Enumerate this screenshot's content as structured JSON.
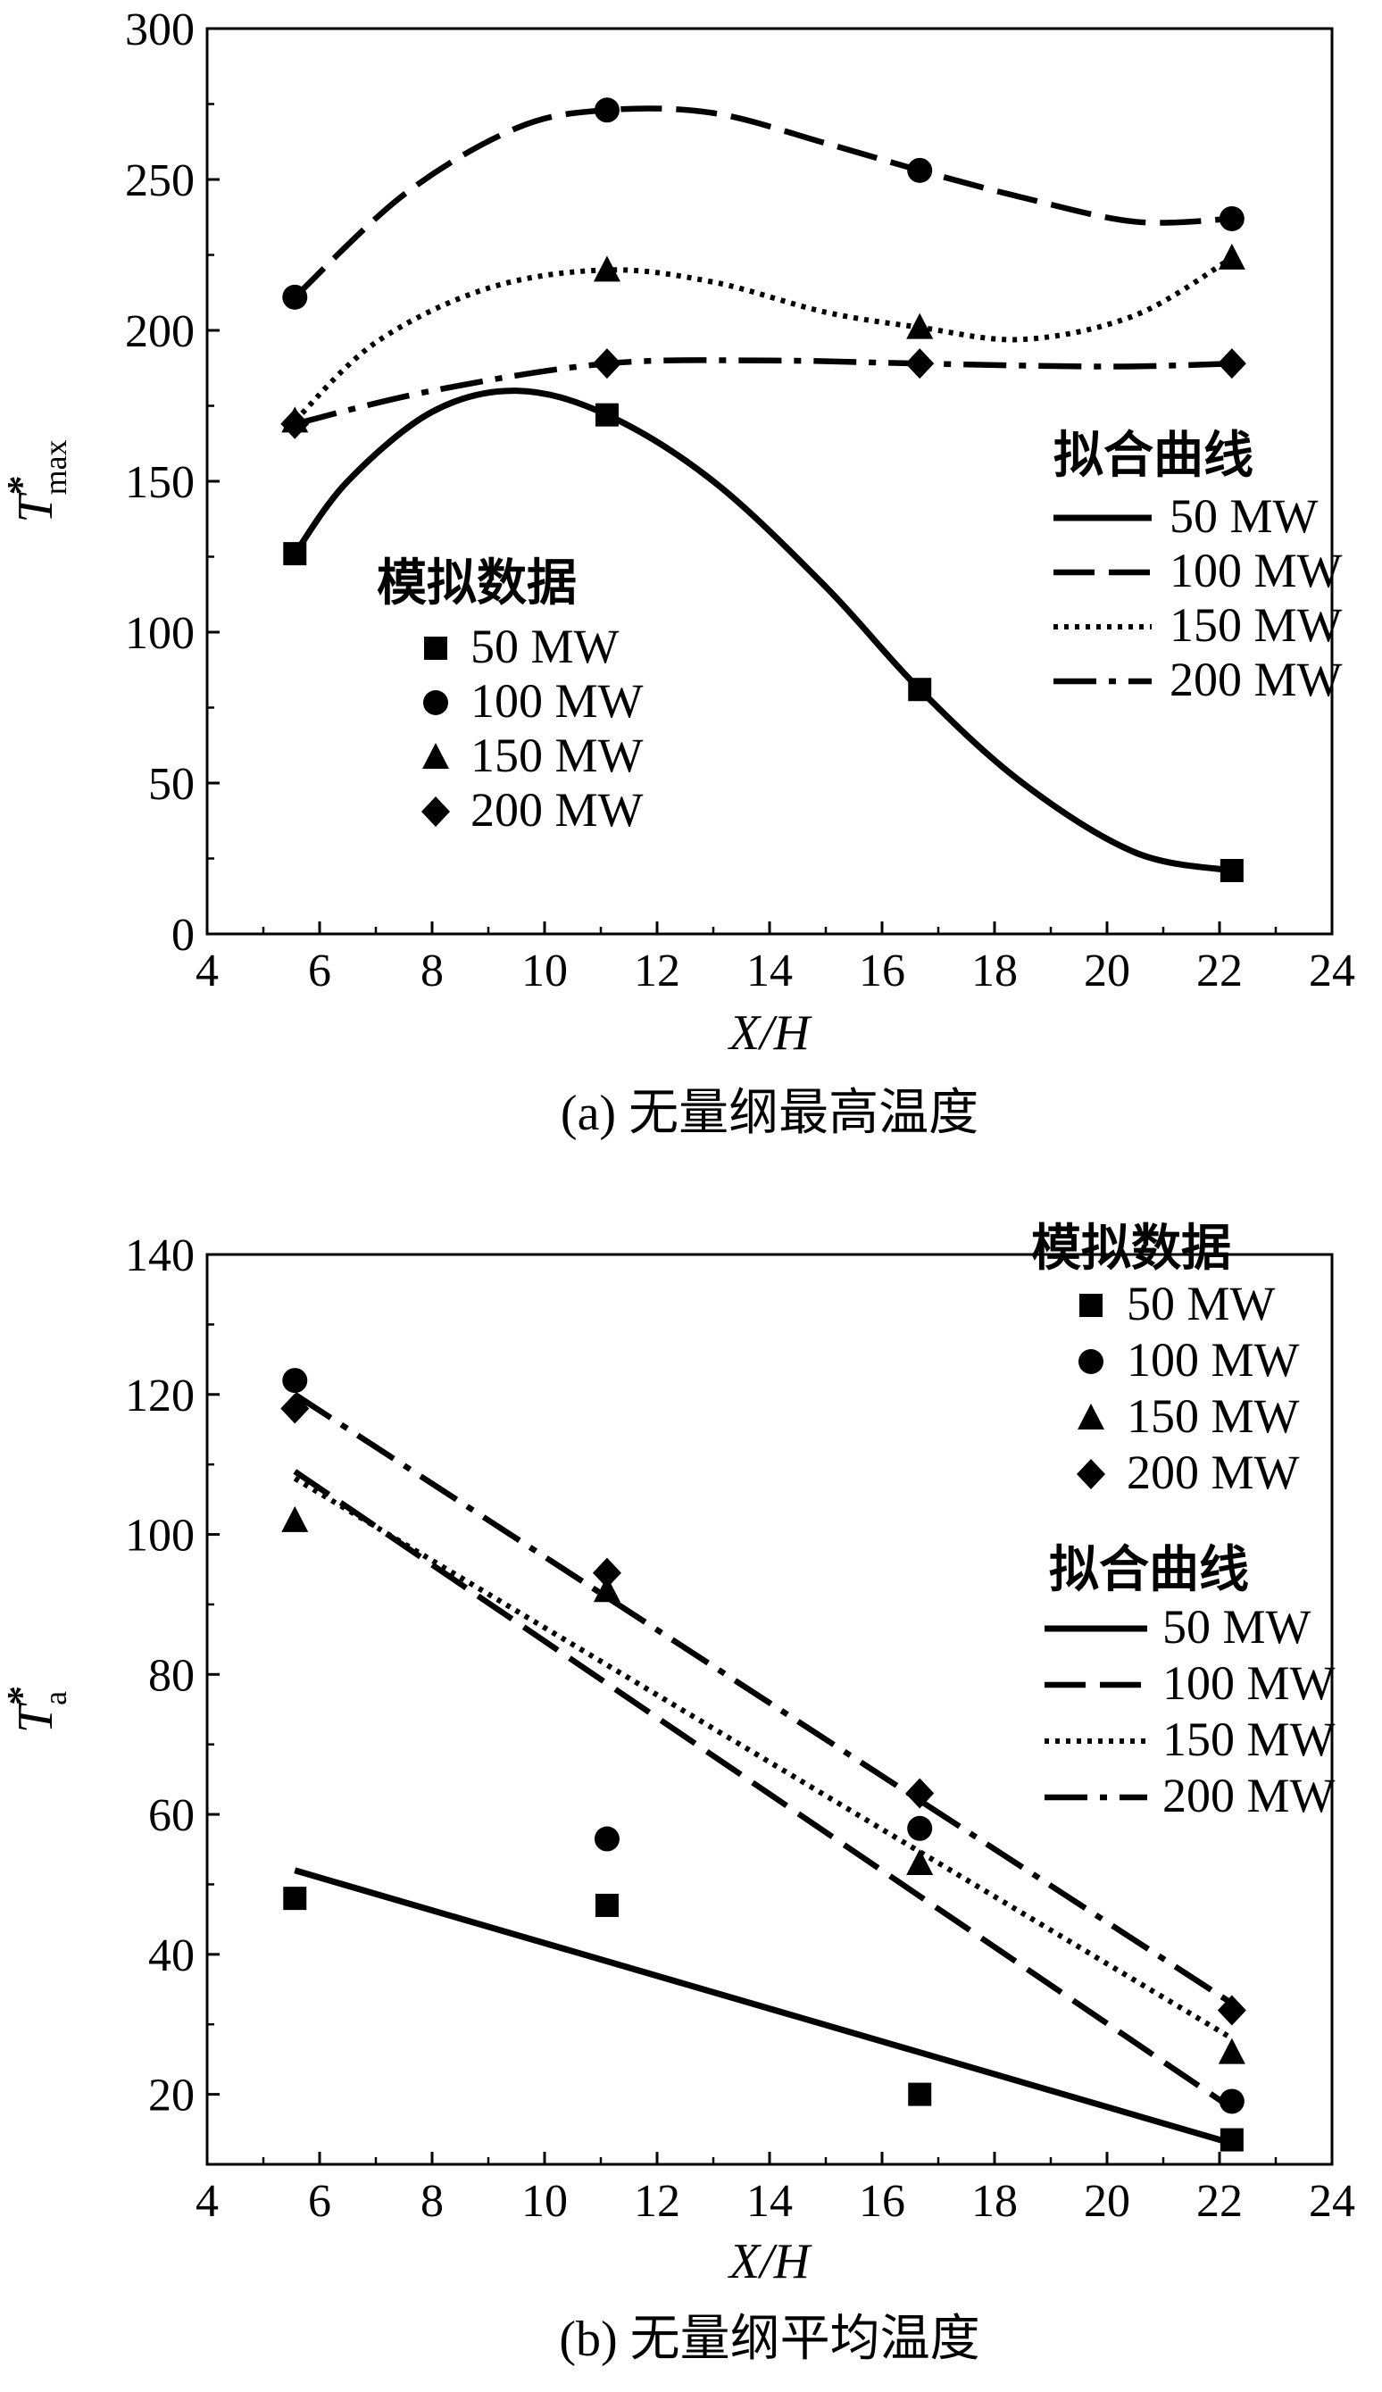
{
  "chart_data": [
    {
      "type": "line",
      "caption": "(a) 无量纲最高温度",
      "xlabel": "X/H",
      "ylabel_main": "T",
      "ylabel_sup": "*",
      "ylabel_sub": "max",
      "xlim": [
        4,
        24
      ],
      "ylim": [
        0,
        300
      ],
      "xticks": [
        4,
        6,
        8,
        10,
        12,
        14,
        16,
        18,
        20,
        22,
        24
      ],
      "yticks": [
        0,
        50,
        100,
        150,
        200,
        250,
        300
      ],
      "legend_markers_title": "模拟数据",
      "legend_lines_title": "拟合曲线",
      "series": [
        {
          "name": "50 MW",
          "marker": "square",
          "line": "solid",
          "color": "#000000",
          "points": [
            [
              5.56,
              126
            ],
            [
              11.11,
              172
            ],
            [
              16.67,
              81
            ],
            [
              22.22,
              21
            ]
          ],
          "fit": [
            [
              5.56,
              126
            ],
            [
              6.5,
              150
            ],
            [
              8,
              173
            ],
            [
              9.5,
              180
            ],
            [
              11.11,
              172
            ],
            [
              13,
              150
            ],
            [
              15,
              115
            ],
            [
              16.67,
              81
            ],
            [
              18.5,
              50
            ],
            [
              20.5,
              27
            ],
            [
              22.22,
              21
            ]
          ]
        },
        {
          "name": "100 MW",
          "marker": "circle",
          "line": "dash",
          "color": "#000000",
          "points": [
            [
              5.56,
              211
            ],
            [
              11.11,
              273
            ],
            [
              16.67,
              253
            ],
            [
              22.22,
              237
            ]
          ],
          "fit": [
            [
              5.56,
              211
            ],
            [
              7.5,
              245
            ],
            [
              9.5,
              267
            ],
            [
              11.11,
              273
            ],
            [
              13,
              272
            ],
            [
              15,
              262
            ],
            [
              16.67,
              253
            ],
            [
              18.5,
              244
            ],
            [
              20.5,
              236
            ],
            [
              22.22,
              237
            ]
          ]
        },
        {
          "name": "150 MW",
          "marker": "triangle",
          "line": "dot",
          "color": "#000000",
          "points": [
            [
              5.56,
              170
            ],
            [
              11.11,
              220
            ],
            [
              16.67,
              201
            ],
            [
              22.22,
              224
            ]
          ],
          "fit": [
            [
              5.56,
              170
            ],
            [
              7,
              196
            ],
            [
              9,
              214
            ],
            [
              11.11,
              220
            ],
            [
              13,
              216
            ],
            [
              15,
              206
            ],
            [
              16.67,
              201
            ],
            [
              18.5,
              197
            ],
            [
              20.5,
              205
            ],
            [
              22.22,
              224
            ]
          ]
        },
        {
          "name": "200 MW",
          "marker": "diamond",
          "line": "dashdot",
          "color": "#000000",
          "points": [
            [
              5.56,
              169
            ],
            [
              11.11,
              189
            ],
            [
              16.67,
              189
            ],
            [
              22.22,
              189
            ]
          ],
          "fit": [
            [
              5.56,
              169
            ],
            [
              8,
              180
            ],
            [
              11.11,
              189
            ],
            [
              14,
              190
            ],
            [
              16.67,
              189
            ],
            [
              20,
              188
            ],
            [
              22.22,
              189
            ]
          ]
        }
      ]
    },
    {
      "type": "line",
      "caption": "(b) 无量纲平均温度",
      "xlabel": "X/H",
      "ylabel_main": "T",
      "ylabel_sup": "*",
      "ylabel_sub": "a",
      "xlim": [
        4,
        24
      ],
      "ylim": [
        10,
        140
      ],
      "xticks": [
        4,
        6,
        8,
        10,
        12,
        14,
        16,
        18,
        20,
        22,
        24
      ],
      "yticks": [
        20,
        40,
        60,
        80,
        100,
        120,
        140
      ],
      "legend_markers_title": "模拟数据",
      "legend_lines_title": "拟合曲线",
      "series": [
        {
          "name": "50 MW",
          "marker": "square",
          "line": "solid",
          "color": "#000000",
          "points": [
            [
              5.56,
              48
            ],
            [
              11.11,
              47
            ],
            [
              16.67,
              20
            ],
            [
              22.22,
              13.5
            ]
          ],
          "fit": [
            [
              5.56,
              52
            ],
            [
              22.22,
              13
            ]
          ]
        },
        {
          "name": "100 MW",
          "marker": "circle",
          "line": "dash",
          "color": "#000000",
          "points": [
            [
              5.56,
              122
            ],
            [
              11.11,
              56.5
            ],
            [
              16.67,
              58
            ],
            [
              22.22,
              19
            ]
          ],
          "fit": [
            [
              5.56,
              109
            ],
            [
              22.22,
              18
            ]
          ]
        },
        {
          "name": "150 MW",
          "marker": "triangle",
          "line": "dot",
          "color": "#000000",
          "points": [
            [
              5.56,
              102
            ],
            [
              11.11,
              92
            ],
            [
              16.67,
              53
            ],
            [
              22.22,
              26
            ]
          ],
          "fit": [
            [
              5.56,
              108
            ],
            [
              22.22,
              28
            ]
          ]
        },
        {
          "name": "200 MW",
          "marker": "diamond",
          "line": "dashdot",
          "color": "#000000",
          "points": [
            [
              5.56,
              118
            ],
            [
              11.11,
              94.5
            ],
            [
              16.67,
              63
            ],
            [
              22.22,
              32
            ]
          ],
          "fit": [
            [
              5.56,
              120
            ],
            [
              22.22,
              33
            ]
          ]
        }
      ]
    }
  ]
}
